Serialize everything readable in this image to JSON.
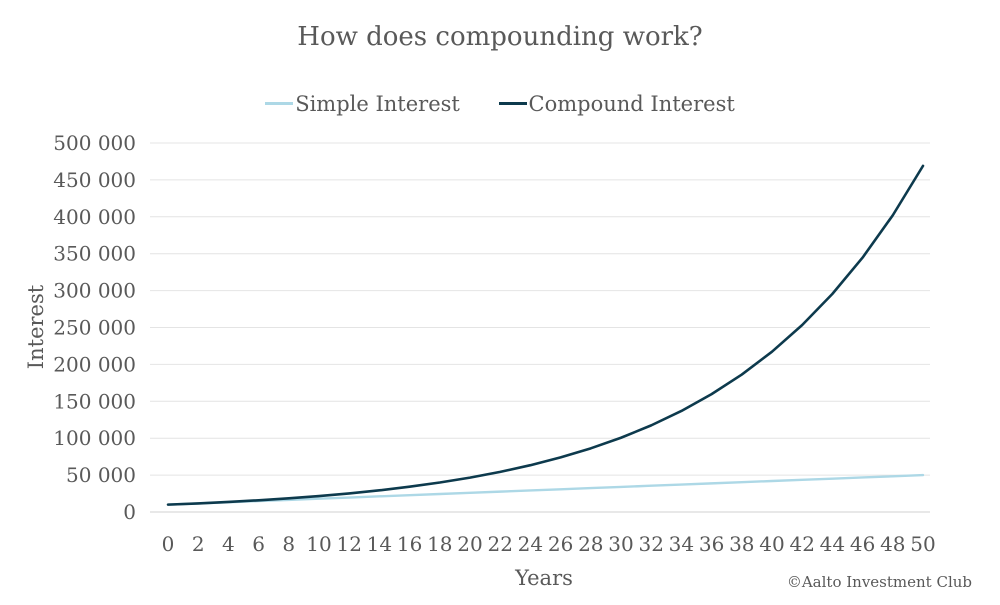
{
  "chart_data": {
    "type": "line",
    "title": "How does compounding work?",
    "xlabel": "Years",
    "ylabel": "Interest",
    "credit": "©Aalto Investment Club",
    "x": [
      0,
      2,
      4,
      6,
      8,
      10,
      12,
      14,
      16,
      18,
      20,
      22,
      24,
      26,
      28,
      30,
      32,
      34,
      36,
      38,
      40,
      42,
      44,
      46,
      48,
      50
    ],
    "ylim": [
      0,
      500000
    ],
    "yticks": [
      0,
      50000,
      100000,
      150000,
      200000,
      250000,
      300000,
      350000,
      400000,
      450000,
      500000
    ],
    "ytick_labels": [
      "0",
      "50 000",
      "100 000",
      "150 000",
      "200 000",
      "250 000",
      "300 000",
      "350 000",
      "400 000",
      "450 000",
      "500 000"
    ],
    "grid": true,
    "legend_position": "top",
    "series": [
      {
        "name": "Simple Interest",
        "color": "#add8e6",
        "values": [
          10000,
          11600,
          13200,
          14800,
          16400,
          18000,
          19600,
          21200,
          22800,
          24400,
          26000,
          27600,
          29200,
          30800,
          32400,
          34000,
          35600,
          37200,
          38800,
          40400,
          42000,
          43600,
          45200,
          46800,
          48400,
          50000
        ]
      },
      {
        "name": "Compound Interest",
        "color": "#0d3a4d",
        "values": [
          10000,
          11664,
          13605,
          15869,
          18509,
          21589,
          25182,
          29372,
          34259,
          39960,
          46610,
          54365,
          63412,
          73964,
          86271,
          100627,
          117371,
          136901,
          159682,
          186253,
          217245,
          253395,
          295560,
          344741,
          402106,
          469016
        ]
      }
    ]
  }
}
